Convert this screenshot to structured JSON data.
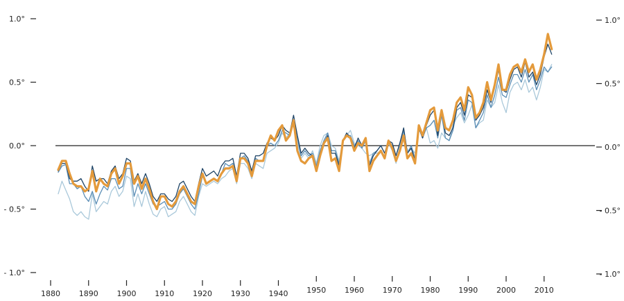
{
  "chart_data": {
    "type": "line",
    "title": "",
    "xlabel": "",
    "ylabel": "",
    "xlim": [
      1880,
      2012
    ],
    "ylim": [
      -1.0,
      1.0
    ],
    "grid": false,
    "legend": "none",
    "x_ticks_left": [
      "1880",
      "1890",
      "1900",
      "1910",
      "1920",
      "1930",
      "1940"
    ],
    "x_ticks_right": [
      "1950",
      "1960",
      "1970",
      "1980",
      "1990",
      "2000",
      "2010"
    ],
    "y_ticks": [
      {
        "value": 1.0,
        "left": "1.0°",
        "right": "1.0°"
      },
      {
        "value": 0.5,
        "left": "0.5°",
        "right": "0.5°"
      },
      {
        "value": 0.0,
        "left": "0.0°",
        "right": "0.0°"
      },
      {
        "value": -0.5,
        "left": "- 0.5°",
        "right": "- 0.5°"
      },
      {
        "value": -1.0,
        "left": "- 1.0°",
        "right": "- 1.0°"
      }
    ],
    "baseline": 0.0,
    "colors": {
      "highlight": "#E49A3B",
      "dark": "#1F4466",
      "medium": "#5A8DB5",
      "light": "#A9C8DA",
      "axis": "#222222"
    },
    "x": [
      1882,
      1883,
      1884,
      1885,
      1886,
      1887,
      1888,
      1889,
      1890,
      1891,
      1892,
      1893,
      1894,
      1895,
      1896,
      1897,
      1898,
      1899,
      1900,
      1901,
      1902,
      1903,
      1904,
      1905,
      1906,
      1907,
      1908,
      1909,
      1910,
      1911,
      1912,
      1913,
      1914,
      1915,
      1916,
      1917,
      1918,
      1919,
      1920,
      1921,
      1922,
      1923,
      1924,
      1925,
      1926,
      1927,
      1928,
      1929,
      1930,
      1931,
      1932,
      1933,
      1934,
      1935,
      1936,
      1937,
      1938,
      1939,
      1940,
      1941,
      1942,
      1943,
      1944,
      1945,
      1946,
      1947,
      1948,
      1949,
      1950,
      1951,
      1952,
      1953,
      1954,
      1955,
      1956,
      1957,
      1958,
      1959,
      1960,
      1961,
      1962,
      1963,
      1964,
      1965,
      1966,
      1967,
      1968,
      1969,
      1970,
      1971,
      1972,
      1973,
      1974,
      1975,
      1976,
      1977,
      1978,
      1979,
      1980,
      1981,
      1982,
      1983,
      1984,
      1985,
      1986,
      1987,
      1988,
      1989,
      1990,
      1991,
      1992,
      1993,
      1994,
      1995,
      1996,
      1997,
      1998,
      1999,
      2000,
      2001,
      2002,
      2003,
      2004,
      2005,
      2006,
      2007,
      2008,
      2009,
      2010,
      2011,
      2012
    ],
    "series": [
      {
        "name": "series-light",
        "values": [
          -0.38,
          -0.28,
          -0.35,
          -0.42,
          -0.52,
          -0.55,
          -0.52,
          -0.56,
          -0.58,
          -0.38,
          -0.52,
          -0.48,
          -0.44,
          -0.46,
          -0.36,
          -0.32,
          -0.4,
          -0.36,
          -0.24,
          -0.26,
          -0.48,
          -0.38,
          -0.48,
          -0.36,
          -0.46,
          -0.54,
          -0.56,
          -0.5,
          -0.48,
          -0.56,
          -0.54,
          -0.52,
          -0.44,
          -0.4,
          -0.46,
          -0.52,
          -0.55,
          -0.4,
          -0.3,
          -0.32,
          -0.3,
          -0.28,
          -0.3,
          -0.26,
          -0.24,
          -0.2,
          -0.18,
          -0.3,
          -0.14,
          -0.14,
          -0.18,
          -0.26,
          -0.14,
          -0.16,
          -0.18,
          -0.06,
          -0.04,
          -0.02,
          0.02,
          0.1,
          0.06,
          0.1,
          0.16,
          0.02,
          -0.1,
          -0.06,
          -0.1,
          -0.04,
          -0.14,
          0.0,
          0.08,
          0.1,
          0.0,
          -0.02,
          -0.12,
          0.04,
          0.08,
          0.12,
          0.02,
          0.0,
          -0.02,
          -0.06,
          -0.08,
          -0.06,
          -0.06,
          -0.04,
          -0.08,
          0.02,
          -0.04,
          -0.14,
          0.0,
          0.1,
          -0.04,
          -0.02,
          -0.06,
          0.12,
          0.1,
          0.14,
          0.02,
          0.04,
          -0.02,
          0.1,
          0.06,
          0.04,
          0.16,
          0.22,
          0.26,
          0.18,
          0.24,
          0.32,
          0.14,
          0.18,
          0.2,
          0.36,
          0.3,
          0.34,
          0.48,
          0.34,
          0.26,
          0.42,
          0.48,
          0.5,
          0.44,
          0.52,
          0.42,
          0.46,
          0.36,
          0.46,
          0.6,
          0.58,
          0.64
        ]
      },
      {
        "name": "series-medium",
        "values": [
          -0.21,
          -0.16,
          -0.15,
          -0.3,
          -0.3,
          -0.34,
          -0.32,
          -0.4,
          -0.44,
          -0.36,
          -0.46,
          -0.38,
          -0.32,
          -0.35,
          -0.26,
          -0.26,
          -0.34,
          -0.32,
          -0.18,
          -0.18,
          -0.4,
          -0.3,
          -0.38,
          -0.3,
          -0.38,
          -0.46,
          -0.48,
          -0.46,
          -0.44,
          -0.5,
          -0.5,
          -0.46,
          -0.38,
          -0.34,
          -0.4,
          -0.46,
          -0.5,
          -0.38,
          -0.24,
          -0.3,
          -0.28,
          -0.26,
          -0.28,
          -0.22,
          -0.14,
          -0.16,
          -0.14,
          -0.28,
          -0.1,
          -0.08,
          -0.12,
          -0.22,
          -0.1,
          -0.12,
          -0.12,
          0.0,
          0.02,
          0.0,
          0.04,
          0.12,
          0.1,
          0.08,
          0.2,
          0.06,
          -0.08,
          -0.04,
          -0.08,
          -0.06,
          -0.16,
          -0.04,
          0.04,
          0.1,
          -0.04,
          -0.04,
          -0.14,
          0.04,
          0.08,
          0.08,
          0.0,
          0.04,
          -0.02,
          0.04,
          -0.14,
          -0.06,
          -0.04,
          0.0,
          -0.06,
          0.04,
          0.0,
          -0.08,
          0.02,
          0.12,
          -0.06,
          0.0,
          -0.1,
          0.14,
          0.06,
          0.14,
          0.16,
          0.2,
          0.06,
          0.24,
          0.06,
          0.04,
          0.12,
          0.28,
          0.3,
          0.2,
          0.36,
          0.34,
          0.14,
          0.2,
          0.26,
          0.4,
          0.3,
          0.4,
          0.54,
          0.4,
          0.38,
          0.48,
          0.56,
          0.56,
          0.5,
          0.6,
          0.5,
          0.56,
          0.44,
          0.52,
          0.62,
          0.58,
          0.62
        ]
      },
      {
        "name": "series-dark",
        "values": [
          -0.2,
          -0.14,
          -0.14,
          -0.26,
          -0.28,
          -0.28,
          -0.26,
          -0.32,
          -0.36,
          -0.16,
          -0.28,
          -0.26,
          -0.26,
          -0.3,
          -0.2,
          -0.16,
          -0.26,
          -0.22,
          -0.1,
          -0.12,
          -0.28,
          -0.22,
          -0.3,
          -0.22,
          -0.3,
          -0.4,
          -0.44,
          -0.38,
          -0.38,
          -0.42,
          -0.44,
          -0.4,
          -0.3,
          -0.28,
          -0.34,
          -0.4,
          -0.44,
          -0.3,
          -0.18,
          -0.24,
          -0.22,
          -0.2,
          -0.24,
          -0.16,
          -0.12,
          -0.12,
          -0.1,
          -0.24,
          -0.06,
          -0.06,
          -0.1,
          -0.2,
          -0.08,
          -0.08,
          -0.06,
          0.02,
          0.06,
          0.04,
          0.08,
          0.16,
          0.12,
          0.1,
          0.24,
          0.08,
          -0.06,
          -0.02,
          -0.06,
          -0.08,
          -0.2,
          -0.06,
          0.02,
          0.08,
          -0.06,
          -0.06,
          -0.16,
          0.04,
          0.1,
          0.06,
          -0.02,
          0.06,
          0.0,
          0.06,
          -0.16,
          -0.08,
          -0.04,
          0.0,
          -0.06,
          0.04,
          0.02,
          -0.08,
          0.02,
          0.14,
          -0.06,
          -0.02,
          -0.12,
          0.14,
          0.06,
          0.16,
          0.24,
          0.28,
          0.08,
          0.28,
          0.1,
          0.08,
          0.14,
          0.3,
          0.34,
          0.24,
          0.4,
          0.38,
          0.2,
          0.24,
          0.3,
          0.44,
          0.34,
          0.46,
          0.6,
          0.44,
          0.42,
          0.52,
          0.6,
          0.62,
          0.54,
          0.66,
          0.54,
          0.58,
          0.48,
          0.56,
          0.7,
          0.8,
          0.72
        ]
      },
      {
        "name": "series-highlight",
        "values": [
          -0.19,
          -0.12,
          -0.12,
          -0.22,
          -0.3,
          -0.32,
          -0.32,
          -0.36,
          -0.34,
          -0.2,
          -0.36,
          -0.26,
          -0.3,
          -0.32,
          -0.22,
          -0.18,
          -0.3,
          -0.24,
          -0.14,
          -0.14,
          -0.3,
          -0.24,
          -0.34,
          -0.26,
          -0.34,
          -0.44,
          -0.5,
          -0.4,
          -0.4,
          -0.46,
          -0.48,
          -0.44,
          -0.36,
          -0.32,
          -0.38,
          -0.44,
          -0.46,
          -0.32,
          -0.22,
          -0.3,
          -0.28,
          -0.26,
          -0.28,
          -0.22,
          -0.18,
          -0.18,
          -0.16,
          -0.28,
          -0.1,
          -0.1,
          -0.14,
          -0.24,
          -0.12,
          -0.12,
          -0.12,
          0.0,
          0.08,
          0.04,
          0.12,
          0.16,
          0.04,
          0.08,
          0.2,
          -0.04,
          -0.12,
          -0.14,
          -0.1,
          -0.08,
          -0.2,
          -0.08,
          0.02,
          0.06,
          -0.12,
          -0.1,
          -0.2,
          0.04,
          0.08,
          0.06,
          -0.04,
          0.02,
          0.0,
          0.06,
          -0.2,
          -0.12,
          -0.08,
          -0.04,
          -0.1,
          0.04,
          -0.02,
          -0.12,
          -0.04,
          0.08,
          -0.1,
          -0.06,
          -0.14,
          0.16,
          0.08,
          0.18,
          0.28,
          0.3,
          0.12,
          0.28,
          0.14,
          0.12,
          0.2,
          0.34,
          0.38,
          0.28,
          0.46,
          0.4,
          0.22,
          0.26,
          0.34,
          0.5,
          0.36,
          0.48,
          0.64,
          0.44,
          0.44,
          0.56,
          0.62,
          0.64,
          0.58,
          0.68,
          0.58,
          0.64,
          0.52,
          0.6,
          0.72,
          0.88,
          0.76
        ]
      }
    ]
  }
}
